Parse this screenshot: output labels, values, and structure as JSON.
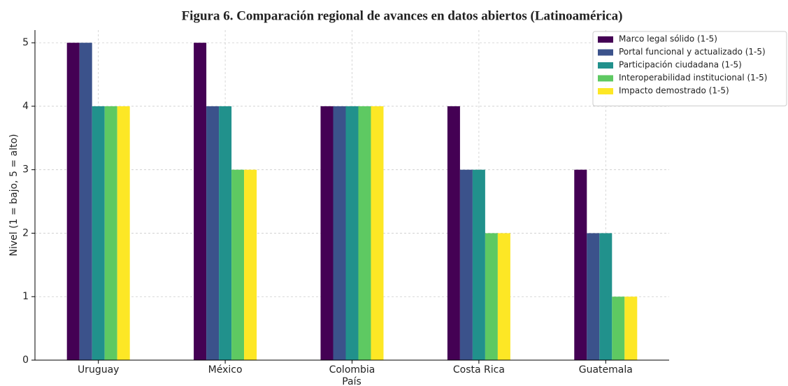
{
  "chart_data": {
    "type": "bar",
    "title": "Figura 6. Comparación regional de avances en datos abiertos (Latinoamérica)",
    "x_label": "País",
    "y_label": "Nivel (1 = bajo, 5 = alto)",
    "categories": [
      "Uruguay",
      "México",
      "Colombia",
      "Costa Rica",
      "Guatemala"
    ],
    "series": [
      {
        "name": "Marco legal sólido (1-5)",
        "color": "#440154",
        "values": [
          5,
          5,
          4,
          4,
          3
        ]
      },
      {
        "name": "Portal funcional y actualizado (1-5)",
        "color": "#3b528b",
        "values": [
          5,
          4,
          4,
          3,
          2
        ]
      },
      {
        "name": "Participación ciudadana (1-5)",
        "color": "#21918c",
        "values": [
          4,
          4,
          4,
          3,
          2
        ]
      },
      {
        "name": "Interoperabilidad institucional (1-5)",
        "color": "#5ec962",
        "values": [
          4,
          3,
          4,
          2,
          1
        ]
      },
      {
        "name": "Impacto demostrado (1-5)",
        "color": "#fde725",
        "values": [
          4,
          3,
          4,
          2,
          1
        ]
      }
    ],
    "ylim": [
      0,
      5.2
    ],
    "yticks": [
      0,
      1,
      2,
      3,
      4,
      5
    ],
    "grid": true,
    "legend": "upper right"
  }
}
